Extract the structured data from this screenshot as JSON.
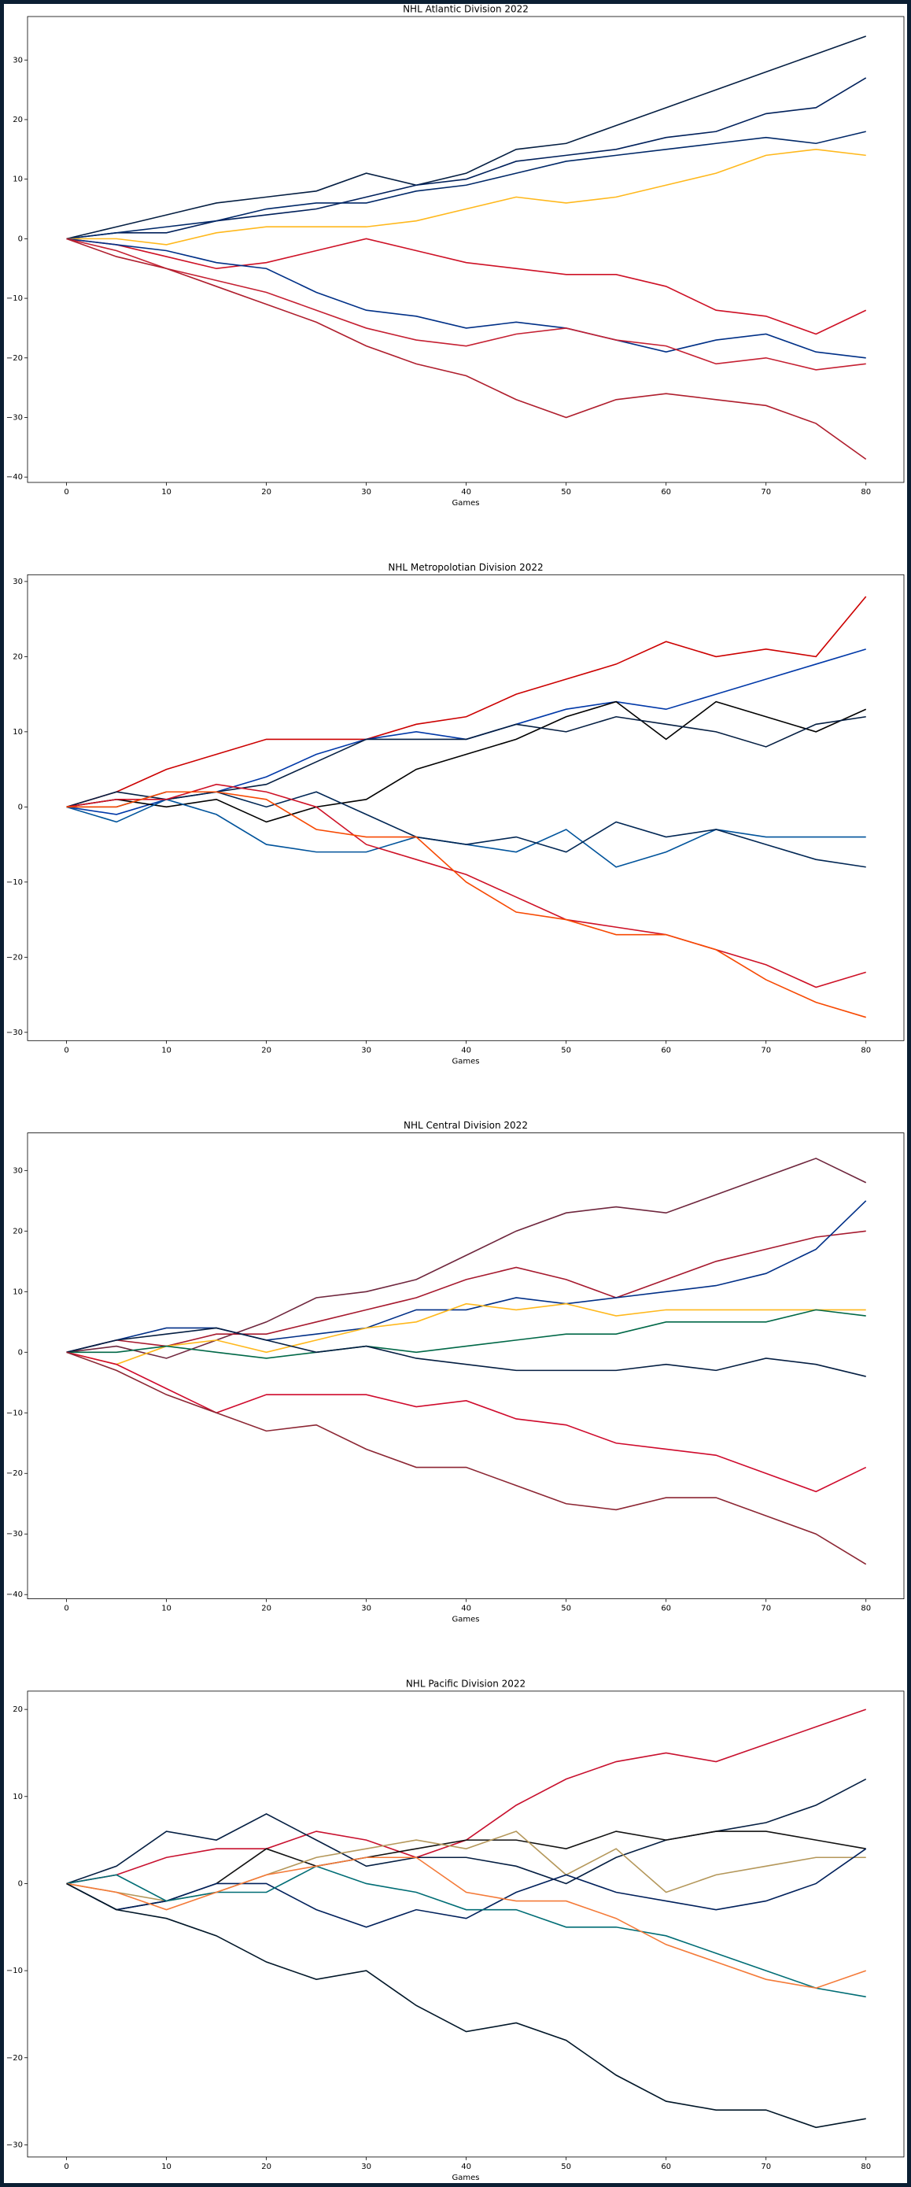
{
  "chart_data": [
    {
      "type": "line",
      "title": "NHL Atlantic Division 2022",
      "x_label": "Games",
      "x": [
        0,
        5,
        10,
        15,
        20,
        25,
        30,
        35,
        40,
        45,
        50,
        55,
        60,
        65,
        70,
        75,
        80
      ],
      "xlim": [
        -3.9,
        83.8
      ],
      "xticks": [
        0,
        10,
        20,
        30,
        40,
        50,
        60,
        70,
        80
      ],
      "ylim": [
        -40.9,
        37.3
      ],
      "yticks": [
        {
          "value": -40,
          "label": "−40"
        },
        {
          "value": -30,
          "label": "−30"
        },
        {
          "value": -20,
          "label": "−20"
        },
        {
          "value": -10,
          "label": "−10"
        },
        0,
        10,
        20,
        30
      ],
      "series": [
        {
          "color": "#041E42",
          "values": [
            0,
            2,
            4,
            6,
            7,
            8,
            11,
            9,
            11,
            15,
            16,
            19,
            22,
            25,
            28,
            31,
            34
          ]
        },
        {
          "color": "#00205B",
          "values": [
            0,
            1,
            1,
            3,
            4,
            5,
            7,
            9,
            10,
            13,
            14,
            15,
            17,
            18,
            21,
            22,
            27
          ]
        },
        {
          "color": "#002868",
          "values": [
            0,
            1,
            2,
            3,
            5,
            6,
            6,
            8,
            9,
            11,
            13,
            14,
            15,
            16,
            17,
            16,
            18
          ]
        },
        {
          "color": "#FFB81C",
          "values": [
            0,
            0,
            -1,
            1,
            2,
            2,
            2,
            3,
            5,
            7,
            6,
            7,
            9,
            11,
            14,
            15,
            14
          ]
        },
        {
          "color": "#CE1126",
          "values": [
            0,
            -1,
            -3,
            -5,
            -4,
            -2,
            0,
            -2,
            -4,
            -5,
            -6,
            -6,
            -8,
            -12,
            -13,
            -16,
            -12
          ]
        },
        {
          "color": "#003087",
          "values": [
            0,
            -1,
            -2,
            -4,
            -5,
            -9,
            -12,
            -13,
            -15,
            -14,
            -15,
            -17,
            -19,
            -17,
            -16,
            -19,
            -20
          ]
        },
        {
          "color": "#C52032",
          "values": [
            0,
            -2,
            -5,
            -7,
            -9,
            -12,
            -15,
            -17,
            -18,
            -16,
            -15,
            -17,
            -18,
            -21,
            -20,
            -22,
            -21
          ]
        },
        {
          "color": "#AF1E2D",
          "values": [
            0,
            -3,
            -5,
            -8,
            -11,
            -14,
            -18,
            -21,
            -23,
            -27,
            -30,
            -27,
            -26,
            -27,
            -28,
            -31,
            -37
          ]
        }
      ]
    },
    {
      "type": "line",
      "title": "NHL Metropolotian Division 2022",
      "x_label": "Games",
      "x": [
        0,
        5,
        10,
        15,
        20,
        25,
        30,
        35,
        40,
        45,
        50,
        55,
        60,
        65,
        70,
        75,
        80
      ],
      "xlim": [
        -3.9,
        83.8
      ],
      "xticks": [
        0,
        10,
        20,
        30,
        40,
        50,
        60,
        70,
        80
      ],
      "ylim": [
        -31.1,
        30.9
      ],
      "yticks": [
        {
          "value": -30,
          "label": "−30"
        },
        {
          "value": -20,
          "label": "−20"
        },
        {
          "value": -10,
          "label": "−10"
        },
        0,
        10,
        20,
        30
      ],
      "series": [
        {
          "color": "#CC0000",
          "values": [
            0,
            2,
            5,
            7,
            9,
            9,
            9,
            11,
            12,
            15,
            17,
            19,
            22,
            20,
            21,
            20,
            28
          ]
        },
        {
          "color": "#0038A8",
          "values": [
            0,
            -1,
            1,
            2,
            4,
            7,
            9,
            10,
            9,
            11,
            13,
            14,
            13,
            15,
            17,
            19,
            21
          ]
        },
        {
          "color": "#000000",
          "values": [
            0,
            1,
            0,
            1,
            -2,
            0,
            1,
            5,
            7,
            9,
            12,
            14,
            9,
            14,
            12,
            10,
            13
          ]
        },
        {
          "color": "#041E42",
          "values": [
            0,
            2,
            1,
            2,
            3,
            6,
            9,
            9,
            9,
            11,
            10,
            12,
            11,
            10,
            8,
            11,
            12
          ]
        },
        {
          "color": "#00539B",
          "values": [
            0,
            -2,
            1,
            -1,
            -5,
            -6,
            -6,
            -4,
            -5,
            -6,
            -3,
            -8,
            -6,
            -3,
            -4,
            -4,
            -4
          ]
        },
        {
          "color": "#002654",
          "values": [
            0,
            0,
            2,
            2,
            0,
            2,
            -1,
            -4,
            -5,
            -4,
            -6,
            -2,
            -4,
            -3,
            -5,
            -7,
            -8
          ]
        },
        {
          "color": "#CE1126",
          "values": [
            0,
            1,
            1,
            3,
            2,
            0,
            -5,
            -7,
            -9,
            -12,
            -15,
            -16,
            -17,
            -19,
            -21,
            -24,
            -22
          ]
        },
        {
          "color": "#F74902",
          "values": [
            0,
            0,
            2,
            2,
            1,
            -3,
            -4,
            -4,
            -10,
            -14,
            -15,
            -17,
            -17,
            -19,
            -23,
            -26,
            -28
          ]
        }
      ]
    },
    {
      "type": "line",
      "title": "NHL Central Division 2022",
      "x_label": "Games",
      "x": [
        0,
        5,
        10,
        15,
        20,
        25,
        30,
        35,
        40,
        45,
        50,
        55,
        60,
        65,
        70,
        75,
        80
      ],
      "xlim": [
        -3.9,
        83.8
      ],
      "xticks": [
        0,
        10,
        20,
        30,
        40,
        50,
        60,
        70,
        80
      ],
      "ylim": [
        -40.7,
        36.2
      ],
      "yticks": [
        {
          "value": -40,
          "label": "−40"
        },
        {
          "value": -30,
          "label": "−30"
        },
        {
          "value": -20,
          "label": "−20"
        },
        {
          "value": -10,
          "label": "−10"
        },
        0,
        10,
        20,
        30
      ],
      "series": [
        {
          "color": "#6F263D",
          "values": [
            0,
            1,
            -1,
            2,
            5,
            9,
            10,
            12,
            16,
            20,
            23,
            24,
            23,
            26,
            29,
            32,
            28
          ]
        },
        {
          "color": "#A6192E",
          "values": [
            0,
            2,
            1,
            3,
            3,
            5,
            7,
            9,
            12,
            14,
            12,
            9,
            12,
            15,
            17,
            19,
            20
          ]
        },
        {
          "color": "#002F87",
          "values": [
            0,
            2,
            4,
            4,
            2,
            3,
            4,
            7,
            7,
            9,
            8,
            9,
            10,
            11,
            13,
            17,
            25
          ]
        },
        {
          "color": "#FFB81C",
          "values": [
            0,
            -2,
            1,
            2,
            0,
            2,
            4,
            5,
            8,
            7,
            8,
            6,
            7,
            7,
            7,
            7,
            7
          ]
        },
        {
          "color": "#006847",
          "values": [
            0,
            0,
            1,
            0,
            -1,
            0,
            1,
            0,
            1,
            2,
            3,
            3,
            5,
            5,
            5,
            7,
            6
          ]
        },
        {
          "color": "#041E42",
          "values": [
            0,
            2,
            3,
            4,
            2,
            0,
            1,
            -1,
            -2,
            -3,
            -3,
            -3,
            -2,
            -3,
            -1,
            -2,
            -4
          ]
        },
        {
          "color": "#CF0A2C",
          "values": [
            0,
            -2,
            -6,
            -10,
            -7,
            -7,
            -7,
            -9,
            -8,
            -11,
            -12,
            -15,
            -16,
            -17,
            -20,
            -23,
            -19
          ]
        },
        {
          "color": "#8C2633",
          "values": [
            0,
            -3,
            -7,
            -10,
            -13,
            -12,
            -16,
            -19,
            -19,
            -22,
            -25,
            -26,
            -24,
            -24,
            -27,
            -30,
            -35
          ]
        }
      ]
    },
    {
      "type": "line",
      "title": "NHL Pacific Division 2022",
      "x_label": "Games",
      "x": [
        0,
        5,
        10,
        15,
        20,
        25,
        30,
        35,
        40,
        45,
        50,
        55,
        60,
        65,
        70,
        75,
        80
      ],
      "xlim": [
        -3.9,
        83.8
      ],
      "xticks": [
        0,
        10,
        20,
        30,
        40,
        50,
        60,
        70,
        80
      ],
      "ylim": [
        -31.4,
        22.1
      ],
      "yticks": [
        {
          "value": -30,
          "label": "−30"
        },
        {
          "value": -20,
          "label": "−20"
        },
        {
          "value": -10,
          "label": "−10"
        },
        0,
        10,
        20
      ],
      "series": [
        {
          "color": "#C8102E",
          "values": [
            0,
            1,
            3,
            4,
            4,
            6,
            5,
            3,
            5,
            9,
            12,
            14,
            15,
            14,
            16,
            18,
            20
          ]
        },
        {
          "color": "#041E42",
          "values": [
            0,
            2,
            6,
            5,
            8,
            5,
            2,
            3,
            3,
            2,
            0,
            3,
            5,
            6,
            7,
            9,
            12
          ]
        },
        {
          "color": "#111111",
          "values": [
            0,
            -3,
            -2,
            0,
            4,
            2,
            3,
            4,
            5,
            5,
            4,
            6,
            5,
            6,
            6,
            5,
            4
          ]
        },
        {
          "color": "#B4975A",
          "values": [
            0,
            -1,
            -2,
            -1,
            1,
            3,
            4,
            5,
            4,
            6,
            1,
            4,
            -1,
            1,
            2,
            3,
            3
          ]
        },
        {
          "color": "#00205B",
          "values": [
            0,
            -3,
            -2,
            0,
            0,
            -3,
            -5,
            -3,
            -4,
            -1,
            1,
            -1,
            -2,
            -3,
            -2,
            0,
            4
          ]
        },
        {
          "color": "#006D75",
          "values": [
            0,
            1,
            -2,
            -1,
            -1,
            2,
            0,
            -1,
            -3,
            -3,
            -5,
            -5,
            -6,
            -8,
            -10,
            -12,
            -13
          ]
        },
        {
          "color": "#F47A38",
          "values": [
            0,
            -1,
            -3,
            -1,
            1,
            2,
            3,
            3,
            -1,
            -2,
            -2,
            -4,
            -7,
            -9,
            -11,
            -12,
            -10
          ]
        },
        {
          "color": "#001628",
          "values": [
            0,
            -3,
            -4,
            -6,
            -9,
            -11,
            -10,
            -14,
            -17,
            -16,
            -18,
            -22,
            -25,
            -26,
            -26,
            -28,
            -27
          ]
        }
      ]
    }
  ]
}
